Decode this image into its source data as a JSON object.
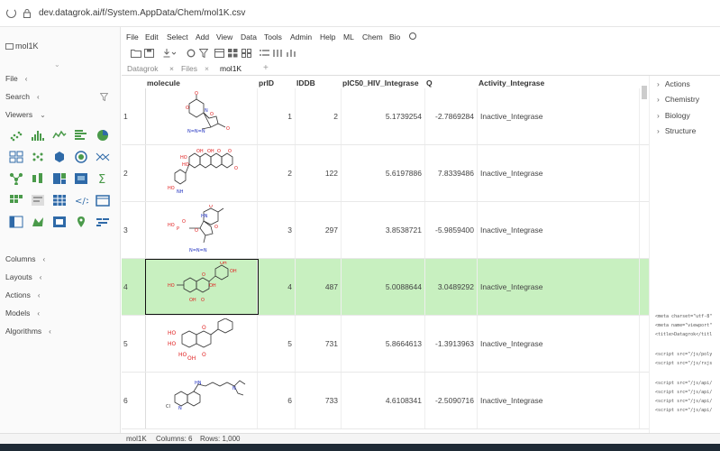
{
  "browser": {
    "url": "dev.datagrok.ai/f/System.AppData/Chem/mol1K.csv"
  },
  "sidebar": {
    "title": "mol1K",
    "sections": [
      {
        "label": "File",
        "caret": "‹"
      },
      {
        "label": "Search",
        "caret": "‹"
      },
      {
        "label": "Viewers",
        "caret": "⌄"
      },
      {
        "label": "Columns",
        "caret": "‹"
      },
      {
        "label": "Layouts",
        "caret": "‹"
      },
      {
        "label": "Actions",
        "caret": "‹"
      },
      {
        "label": "Models",
        "caret": "‹"
      },
      {
        "label": "Algorithms",
        "caret": "‹"
      }
    ],
    "viewer_icons": [
      "scatter-plot",
      "histogram",
      "line-chart",
      "bar-chart",
      "pie-chart",
      "trellis-plot",
      "matrix-plot",
      "3d-scatter",
      "density-plot",
      "pc-plot",
      "network-diagram",
      "box-plot",
      "tree-map",
      "heat-map",
      "statistics",
      "tile-viewer",
      "form-viewer",
      "grid",
      "markup",
      "calendar",
      "pivot-table",
      "shape-map",
      "chart-data",
      "map",
      "word-cloud"
    ]
  },
  "menu": [
    "File",
    "Edit",
    "Select",
    "Add",
    "View",
    "Data",
    "Tools",
    "Admin",
    "Help",
    "ML",
    "Chem",
    "Bio"
  ],
  "tabs": [
    {
      "label": "Datagrok",
      "active": false
    },
    {
      "label": "Files",
      "active": false
    },
    {
      "label": "mol1K",
      "active": true
    }
  ],
  "grid": {
    "columns": [
      "molecule",
      "prID",
      "IDDB",
      "pIC50_HIV_Integrase",
      "Q",
      "Activity_Integrase"
    ],
    "rows": [
      {
        "idx": "1",
        "prID": "1",
        "IDDB": "2",
        "pic": "5.1739254",
        "q": "-2.7869284",
        "act": "Inactive_Integrase"
      },
      {
        "idx": "2",
        "prID": "2",
        "IDDB": "122",
        "pic": "5.6197886",
        "q": "7.8339486",
        "act": "Inactive_Integrase"
      },
      {
        "idx": "3",
        "prID": "3",
        "IDDB": "297",
        "pic": "3.8538721",
        "q": "-5.9859400",
        "act": "Inactive_Integrase"
      },
      {
        "idx": "4",
        "prID": "4",
        "IDDB": "487",
        "pic": "5.0088644",
        "q": "3.0489292",
        "act": "Inactive_Integrase"
      },
      {
        "idx": "5",
        "prID": "5",
        "IDDB": "731",
        "pic": "5.8664613",
        "q": "-1.3913963",
        "act": "Inactive_Integrase"
      },
      {
        "idx": "6",
        "prID": "6",
        "IDDB": "733",
        "pic": "4.6108341",
        "q": "-2.5090716",
        "act": "Inactive_Integrase"
      }
    ],
    "selected_row": "4"
  },
  "right_panel": {
    "items": [
      "Actions",
      "Chemistry",
      "Biology",
      "Structure"
    ],
    "code_lines": [
      "<meta charset=\"utf-8\"",
      "<meta name=\"viewport\"",
      "<title>Datagrok</titl",
      "",
      "<script src=\"/js/poly",
      "<script src=\"/js/rxjs",
      "",
      "<script src=\"/js/api/",
      "<script src=\"/js/api/",
      "<script src=\"/js/api/",
      "<script src=\"/js/api/"
    ]
  },
  "status": {
    "table": "mol1K",
    "columns": "Columns: 6",
    "rows": "Rows: 1,000"
  },
  "colors": {
    "selected_row": "#c8f0c0",
    "atom_o": "#e02020",
    "atom_n": "#2030c0"
  }
}
